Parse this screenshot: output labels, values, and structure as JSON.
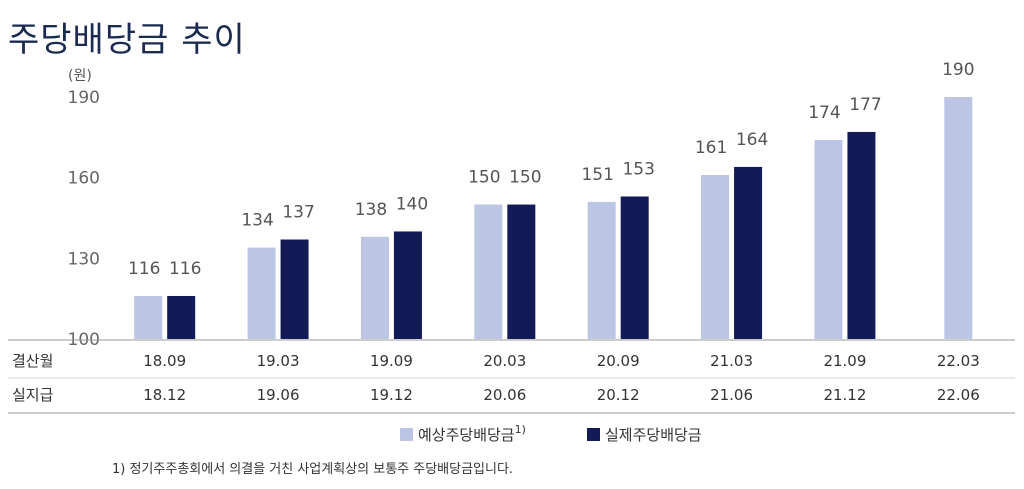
{
  "chart_data": {
    "type": "bar",
    "title": "주당배당금 추이",
    "unit_label": "(원)",
    "ylim": [
      100,
      190
    ],
    "yticks": [
      100,
      130,
      160,
      190
    ],
    "row_labels": [
      "결산월",
      "실지급"
    ],
    "categories": [
      "18.09",
      "19.03",
      "19.09",
      "20.03",
      "20.09",
      "21.03",
      "21.09",
      "22.03"
    ],
    "payment_dates": [
      "18.12",
      "19.06",
      "19.12",
      "20.06",
      "20.12",
      "21.06",
      "21.12",
      "22.06"
    ],
    "series": [
      {
        "name": "예상주당배당금",
        "name_superscript": "1)",
        "color": "#bcc5e3",
        "values": [
          116,
          134,
          138,
          150,
          151,
          161,
          174,
          190
        ]
      },
      {
        "name": "실제주당배당금",
        "color": "#131b57",
        "values": [
          116,
          137,
          140,
          150,
          153,
          164,
          177,
          null
        ]
      }
    ],
    "grid": false,
    "legend_position": "bottom"
  },
  "footnote": "1) 정기주주총회에서 의결을 거친 사업계획상의 보통주 주당배당금입니다."
}
